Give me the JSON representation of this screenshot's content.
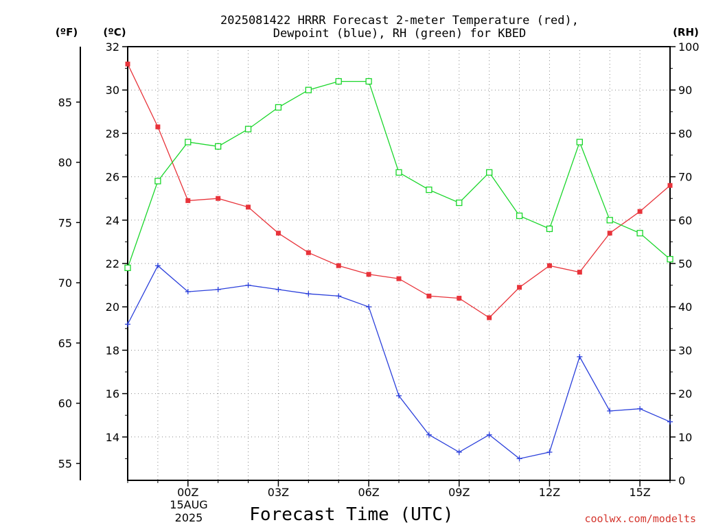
{
  "chart_data": {
    "type": "line",
    "title_line1": "2025081422 HRRR Forecast 2-meter Temperature (red),",
    "title_line2": "Dewpoint (blue), RH (green) for KBED",
    "xlabel": "Forecast Time (UTC)",
    "credit": "coolwx.com/modelts",
    "unit_left_f": "(ºF)",
    "unit_left_c": "(ºC)",
    "unit_right_rh": "(RH)",
    "x_start_label": [
      "15AUG",
      "2025"
    ],
    "x_ticks": [
      {
        "hour": 2,
        "label": "00Z"
      },
      {
        "hour": 5,
        "label": "03Z"
      },
      {
        "hour": 8,
        "label": "06Z"
      },
      {
        "hour": 11,
        "label": "09Z"
      },
      {
        "hour": 14,
        "label": "12Z"
      },
      {
        "hour": 17,
        "label": "15Z"
      }
    ],
    "xlim": [
      0,
      18
    ],
    "celsius_axis": {
      "ylim": [
        12,
        32
      ],
      "ticks": [
        "14",
        "16",
        "18",
        "20",
        "22",
        "24",
        "26",
        "28",
        "30",
        "32"
      ]
    },
    "fahrenheit_axis": {
      "ticks": [
        "55",
        "60",
        "65",
        "70",
        "75",
        "80",
        "85"
      ]
    },
    "rh_axis": {
      "ylim": [
        0,
        100
      ],
      "ticks": [
        "0",
        "10",
        "20",
        "30",
        "40",
        "50",
        "60",
        "70",
        "80",
        "90",
        "100"
      ]
    },
    "series": [
      {
        "name": "2-meter Temperature",
        "axis": "celsius",
        "color": "#e8333a",
        "marker": "filled-square",
        "values": [
          31.2,
          28.3,
          24.9,
          25.0,
          24.6,
          23.4,
          22.5,
          21.9,
          21.5,
          21.3,
          20.5,
          20.4,
          19.5,
          20.9,
          21.9,
          21.6,
          23.4,
          24.4,
          25.6
        ]
      },
      {
        "name": "Dewpoint",
        "axis": "celsius",
        "color": "#2a3fdb",
        "marker": "plus",
        "values": [
          19.2,
          21.9,
          20.7,
          20.8,
          21.0,
          20.8,
          20.6,
          20.5,
          20.0,
          15.9,
          14.1,
          13.3,
          14.1,
          13.0,
          13.3,
          17.7,
          15.2,
          15.3,
          14.7
        ]
      },
      {
        "name": "RH",
        "axis": "rh",
        "color": "#19d62a",
        "marker": "open-square",
        "values": [
          49,
          69,
          78,
          77,
          81,
          86,
          90,
          92,
          92,
          71,
          67,
          64,
          71,
          61,
          58,
          78,
          60,
          57,
          51
        ]
      }
    ]
  }
}
